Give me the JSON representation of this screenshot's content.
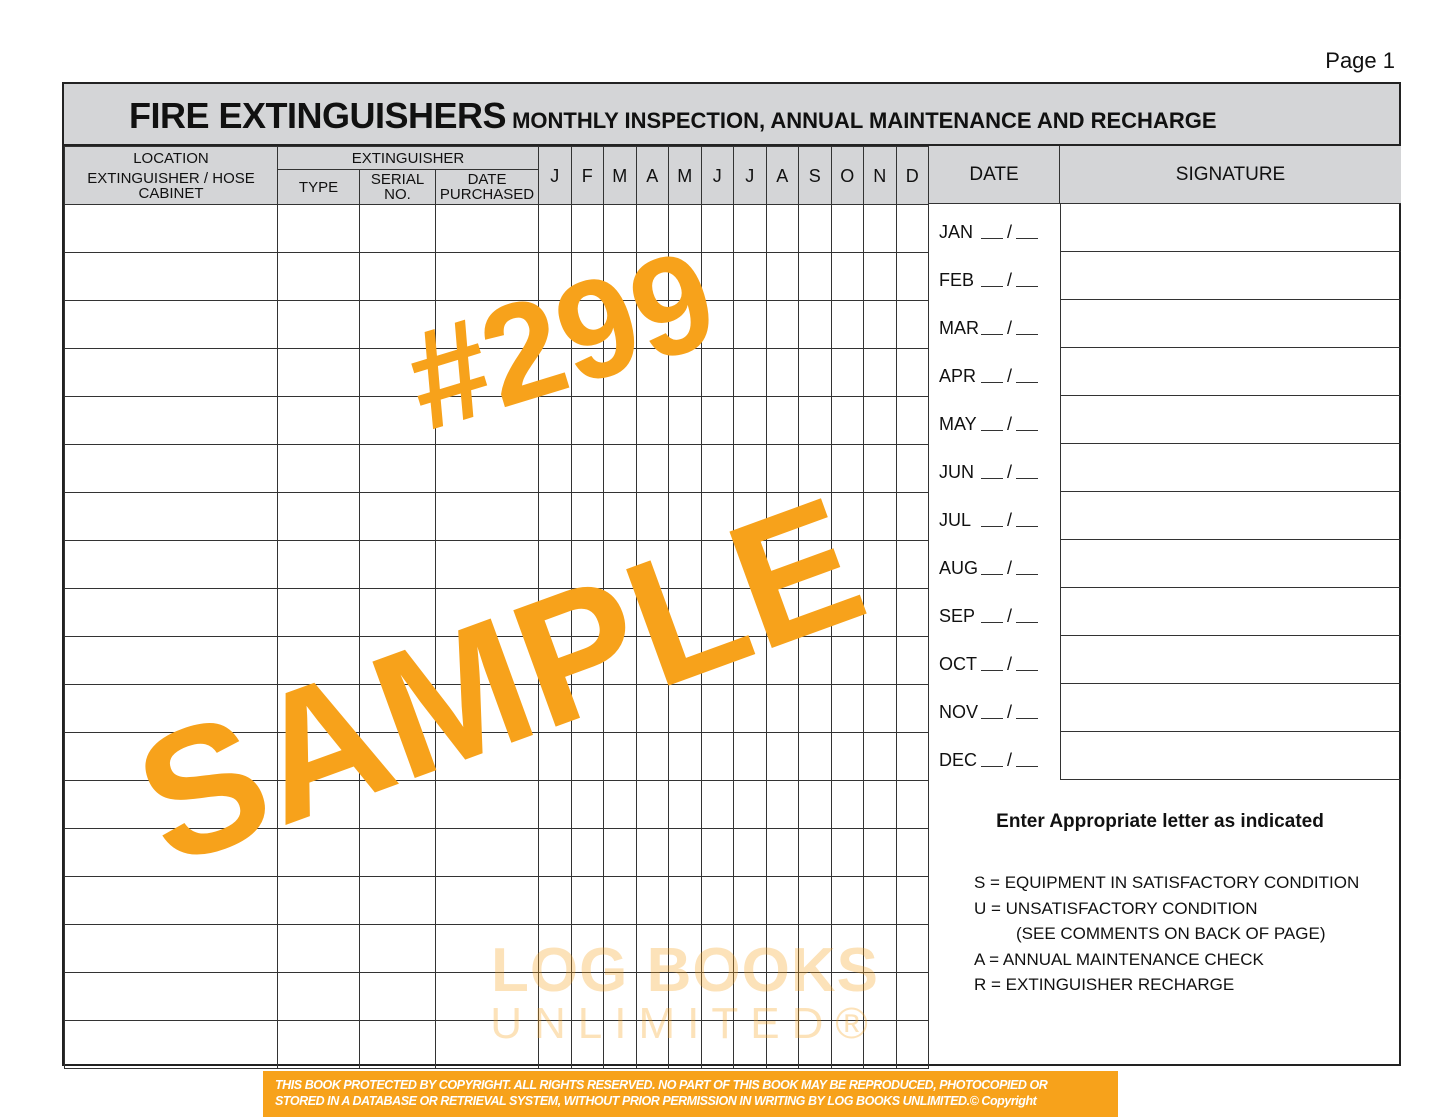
{
  "page_label": "Page 1",
  "title": {
    "main": "FIRE EXTINGUISHERS",
    "sub": "MONTHLY INSPECTION, ANNUAL MAINTENANCE AND RECHARGE"
  },
  "columns": {
    "location_line1": "LOCATION",
    "location_line2": "EXTINGUISHER / HOSE CABINET",
    "extinguisher": "EXTINGUISHER",
    "type": "TYPE",
    "serial_line1": "SERIAL",
    "serial_line2": "NO.",
    "date_purchased_line1": "DATE",
    "date_purchased_line2": "PURCHASED",
    "months": [
      "J",
      "F",
      "M",
      "A",
      "M",
      "J",
      "J",
      "A",
      "S",
      "O",
      "N",
      "D"
    ],
    "date": "DATE",
    "signature": "SIGNATURE"
  },
  "date_entries": [
    "JAN",
    "FEB",
    "MAR",
    "APR",
    "MAY",
    "JUN",
    "JUL",
    "AUG",
    "SEP",
    "OCT",
    "NOV",
    "DEC"
  ],
  "date_separator": "/",
  "legend": {
    "title": "Enter Appropriate letter as indicated",
    "items": [
      "S = EQUIPMENT IN SATISFACTORY CONDITION",
      "U = UNSATISFACTORY CONDITION",
      "(SEE COMMENTS ON BACK OF PAGE)",
      "A = ANNUAL MAINTENANCE CHECK",
      "R = EXTINGUISHER RECHARGE"
    ]
  },
  "watermark": {
    "number": "#299",
    "text": "SAMPLE",
    "color": "#F7A21B"
  },
  "logo": {
    "line1": "LOG BOOKS",
    "line2": "UNLIMITED®"
  },
  "footer": {
    "line1": "THIS BOOK PROTECTED BY COPYRIGHT. ALL RIGHTS RESERVED. NO PART OF THIS BOOK MAY BE REPRODUCED, PHOTOCOPIED OR",
    "line2": "STORED IN A DATABASE OR RETRIEVAL SYSTEM, WITHOUT PRIOR PERMISSION IN WRITING BY LOG BOOKS UNLIMITED.© Copyright"
  }
}
